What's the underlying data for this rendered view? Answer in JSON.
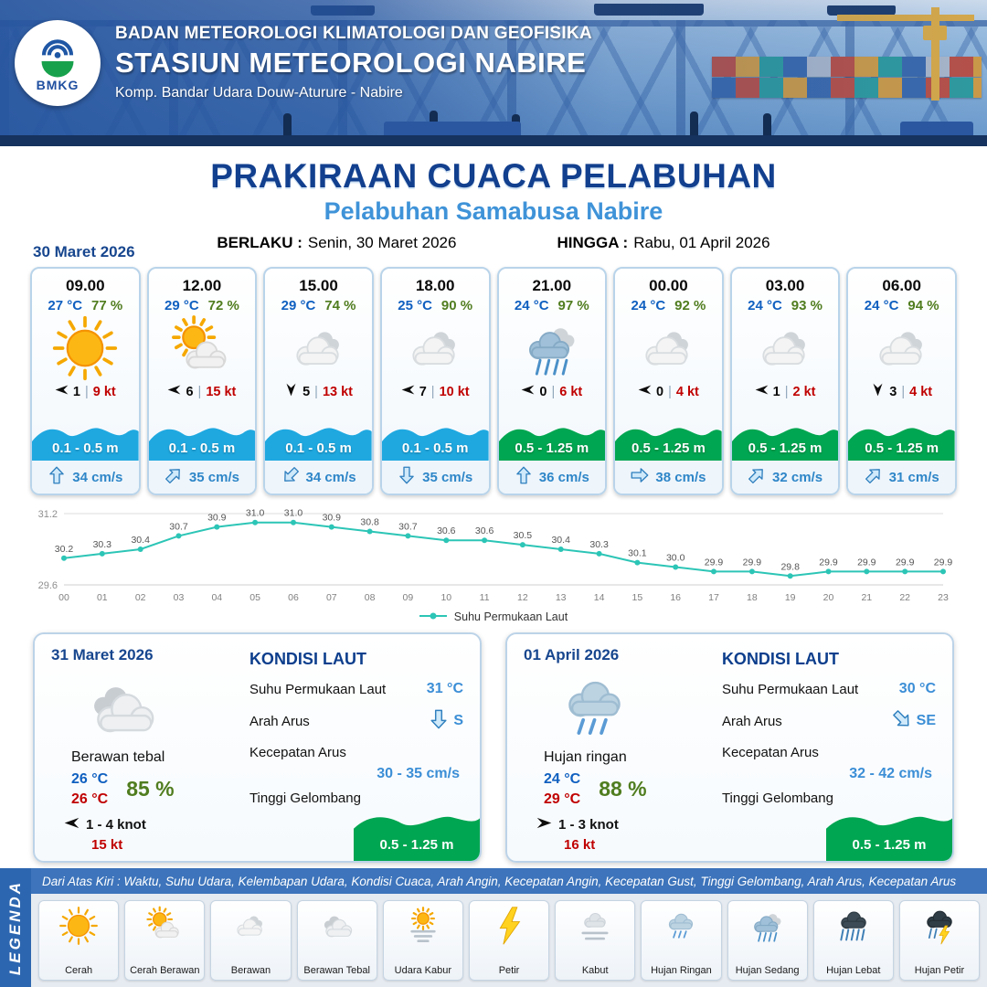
{
  "colors": {
    "navy": "#17468e",
    "subtitle_blue": "#3f93d8",
    "temp_blue": "#1060c0",
    "humidity_green": "#507d1f",
    "red": "#c00000",
    "wave_cyan": "#1fa8e0",
    "wave_green": "#00a651",
    "current_blue": "#2e86c8",
    "chart_teal": "#2cc5b6"
  },
  "header": {
    "logo_text": "BMKG",
    "org_line": "BADAN METEOROLOGI KLIMATOLOGI DAN GEOFISIKA",
    "station_line": "STASIUN METEOROLOGI NABIRE",
    "address_line": "Komp. Bandar Udara Douw-Aturure - Nabire"
  },
  "title": {
    "main": "PRAKIRAAN CUACA PELABUHAN",
    "subtitle": "Pelabuhan Samabusa Nabire",
    "valid_from_label": "BERLAKU :",
    "valid_from": "Senin, 30 Maret 2026",
    "valid_to_label": "HINGGA :",
    "valid_to": "Rabu, 01 April 2026"
  },
  "forecast": {
    "date_label": "30 Maret 2026",
    "wind_separator": "|",
    "cards": [
      {
        "time": "09.00",
        "temp": "27 °C",
        "humidity": "77 %",
        "icon": "sunny",
        "wind_direction": "left",
        "wind_speed": "1",
        "wind_gust": "9 kt",
        "wave_height": "0.1 - 0.5 m",
        "wave_color": "#1fa8e0",
        "current_direction": "up",
        "current_speed": "34 cm/s"
      },
      {
        "time": "12.00",
        "temp": "29 °C",
        "humidity": "72 %",
        "icon": "partly-cloudy",
        "wind_direction": "left",
        "wind_speed": "6",
        "wind_gust": "15 kt",
        "wave_height": "0.1 - 0.5 m",
        "wave_color": "#1fa8e0",
        "current_direction": "up-right",
        "current_speed": "35 cm/s"
      },
      {
        "time": "15.00",
        "temp": "29 °C",
        "humidity": "74 %",
        "icon": "cloudy",
        "wind_direction": "down",
        "wind_speed": "5",
        "wind_gust": "13 kt",
        "wave_height": "0.1 - 0.5 m",
        "wave_color": "#1fa8e0",
        "current_direction": "down-left",
        "current_speed": "34 cm/s"
      },
      {
        "time": "18.00",
        "temp": "25 °C",
        "humidity": "90 %",
        "icon": "cloudy",
        "wind_direction": "left",
        "wind_speed": "7",
        "wind_gust": "10 kt",
        "wave_height": "0.1 - 0.5 m",
        "wave_color": "#1fa8e0",
        "current_direction": "down",
        "current_speed": "35 cm/s"
      },
      {
        "time": "21.00",
        "temp": "24 °C",
        "humidity": "97 %",
        "icon": "rain-moderate",
        "wind_direction": "left",
        "wind_speed": "0",
        "wind_gust": "6 kt",
        "wave_height": "0.5 - 1.25 m",
        "wave_color": "#00a651",
        "current_direction": "up",
        "current_speed": "36 cm/s"
      },
      {
        "time": "00.00",
        "temp": "24 °C",
        "humidity": "92 %",
        "icon": "cloudy",
        "wind_direction": "left",
        "wind_speed": "0",
        "wind_gust": "4 kt",
        "wave_height": "0.5 - 1.25 m",
        "wave_color": "#00a651",
        "current_direction": "right",
        "current_speed": "38 cm/s"
      },
      {
        "time": "03.00",
        "temp": "24 °C",
        "humidity": "93 %",
        "icon": "cloudy",
        "wind_direction": "left",
        "wind_speed": "1",
        "wind_gust": "2 kt",
        "wave_height": "0.5 - 1.25 m",
        "wave_color": "#00a651",
        "current_direction": "up-right",
        "current_speed": "32 cm/s"
      },
      {
        "time": "06.00",
        "temp": "24 °C",
        "humidity": "94 %",
        "icon": "cloudy",
        "wind_direction": "down",
        "wind_speed": "3",
        "wind_gust": "4 kt",
        "wave_height": "0.5 - 1.25 m",
        "wave_color": "#00a651",
        "current_direction": "up-right",
        "current_speed": "31 cm/s"
      }
    ]
  },
  "chart_data": {
    "type": "line",
    "series_name": "Suhu Permukaan Laut",
    "x": [
      "00",
      "01",
      "02",
      "03",
      "04",
      "05",
      "06",
      "07",
      "08",
      "09",
      "10",
      "11",
      "12",
      "13",
      "14",
      "15",
      "16",
      "17",
      "18",
      "19",
      "20",
      "21",
      "22",
      "23"
    ],
    "values": [
      30.2,
      30.3,
      30.4,
      30.7,
      30.9,
      31.0,
      31.0,
      30.9,
      30.8,
      30.7,
      30.6,
      30.6,
      30.5,
      30.4,
      30.3,
      30.1,
      30.0,
      29.9,
      29.9,
      29.8,
      29.9,
      29.9,
      29.9,
      29.9
    ],
    "ylim": [
      29.6,
      31.2
    ],
    "line_color": "#2cc5b6",
    "grid": true,
    "legend_position": "bottom"
  },
  "daily_cards": [
    {
      "date": "31 Maret 2026",
      "icon": "thick-cloud",
      "condition": "Berawan tebal",
      "temp_min": "26 °C",
      "temp_max": "26 °C",
      "humidity": "85 %",
      "wind_direction": "left",
      "wind_speed_range": "1  - 4 knot",
      "wind_gust": "15 kt",
      "sea": {
        "heading": "KONDISI LAUT",
        "sst_label": "Suhu Permukaan Laut",
        "sst_value": "31 °C",
        "current_dir_label": "Arah Arus",
        "current_direction": "down",
        "current_direction_text": "S",
        "current_speed_label": "Kecepatan Arus",
        "current_speed_value": "30 - 35 cm/s",
        "wave_label": "Tinggi Gelombang",
        "wave_value": "0.5 - 1.25 m",
        "wave_color": "#00a651"
      }
    },
    {
      "date": "01 April 2026",
      "icon": "rain-light",
      "condition": "Hujan ringan",
      "temp_min": "24 °C",
      "temp_max": "29 °C",
      "humidity": "88 %",
      "wind_direction": "right",
      "wind_speed_range": "1  - 3 knot",
      "wind_gust": "16 kt",
      "sea": {
        "heading": "KONDISI LAUT",
        "sst_label": "Suhu Permukaan Laut",
        "sst_value": "30 °C",
        "current_dir_label": "Arah Arus",
        "current_direction": "down-right",
        "current_direction_text": "SE",
        "current_speed_label": "Kecepatan Arus",
        "current_speed_value": "32 - 42 cm/s",
        "wave_label": "Tinggi Gelombang",
        "wave_value": "0.5 - 1.25 m",
        "wave_color": "#00a651"
      }
    }
  ],
  "legend": {
    "title_vertical": "LEGENDA",
    "description": "Dari Atas Kiri : Waktu, Suhu Udara, Kelembapan Udara, Kondisi Cuaca, Arah Angin, Kecepatan Angin, Kecepatan Gust, Tinggi Gelombang, Arah Arus, Kecepatan Arus",
    "items": [
      {
        "label": "Cerah",
        "icon": "sunny"
      },
      {
        "label": "Cerah Berawan",
        "icon": "partly-cloudy"
      },
      {
        "label": "Berawan",
        "icon": "cloudy"
      },
      {
        "label": "Berawan Tebal",
        "icon": "thick-cloud"
      },
      {
        "label": "Udara Kabur",
        "icon": "haze"
      },
      {
        "label": "Petir",
        "icon": "thunder"
      },
      {
        "label": "Kabut",
        "icon": "fog"
      },
      {
        "label": "Hujan Ringan",
        "icon": "rain-light"
      },
      {
        "label": "Hujan Sedang",
        "icon": "rain-moderate"
      },
      {
        "label": "Hujan Lebat",
        "icon": "rain-heavy"
      },
      {
        "label": "Hujan Petir",
        "icon": "rain-thunder"
      }
    ]
  }
}
